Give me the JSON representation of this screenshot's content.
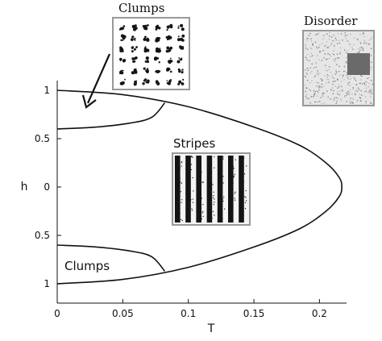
{
  "chart_data": {
    "type": "phase-diagram",
    "xlabel": "T",
    "ylabel": "h",
    "x_ticks": [
      "0",
      "0.05",
      "0.1",
      "0.15",
      "0.2"
    ],
    "y_ticks": [
      "1",
      "0.5",
      "0",
      "0.5",
      "1"
    ],
    "x_range": [
      0,
      0.225
    ],
    "y_range": [
      -1,
      1
    ],
    "outer_boundary": [
      {
        "T": 0.0,
        "h": 1.0
      },
      {
        "T": 0.05,
        "h": 0.955
      },
      {
        "T": 0.1,
        "h": 0.83
      },
      {
        "T": 0.15,
        "h": 0.62
      },
      {
        "T": 0.185,
        "h": 0.43
      },
      {
        "T": 0.205,
        "h": 0.25
      },
      {
        "T": 0.215,
        "h": 0.1
      },
      {
        "T": 0.217,
        "h": 0.0
      },
      {
        "T": 0.215,
        "h": -0.1
      },
      {
        "T": 0.205,
        "h": -0.25
      },
      {
        "T": 0.185,
        "h": -0.43
      },
      {
        "T": 0.15,
        "h": -0.62
      },
      {
        "T": 0.1,
        "h": -0.83
      },
      {
        "T": 0.05,
        "h": -0.955
      },
      {
        "T": 0.0,
        "h": -1.0
      }
    ],
    "clump_boundary_top": [
      {
        "T": 0.0,
        "h": 0.6
      },
      {
        "T": 0.03,
        "h": 0.62
      },
      {
        "T": 0.055,
        "h": 0.66
      },
      {
        "T": 0.072,
        "h": 0.72
      },
      {
        "T": 0.082,
        "h": 0.87
      }
    ],
    "clump_boundary_bottom": [
      {
        "T": 0.0,
        "h": -0.6
      },
      {
        "T": 0.03,
        "h": -0.62
      },
      {
        "T": 0.055,
        "h": -0.66
      },
      {
        "T": 0.072,
        "h": -0.72
      },
      {
        "T": 0.082,
        "h": -0.87
      }
    ],
    "regions": {
      "clumps_top_label": "Clumps",
      "clumps_bottom_label": "Clumps",
      "stripes_label": "Stripes",
      "disorder_label": "Disorder"
    }
  }
}
